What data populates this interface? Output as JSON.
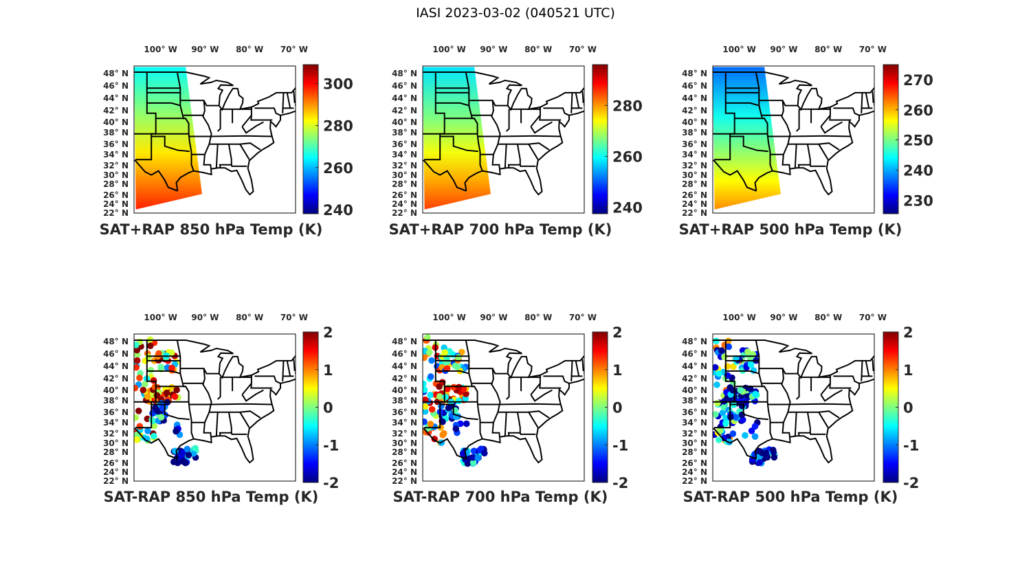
{
  "title": "IASI 2023-03-02 (040521 UTC)",
  "chart_data": [
    {
      "type": "map",
      "title": "SAT+RAP 850 hPa Temp (K)",
      "kind": "field",
      "clim": [
        238,
        309
      ],
      "cbar_ticks": [
        "240",
        "260",
        "280",
        "300"
      ],
      "cbar_tick_values": [
        240,
        260,
        280,
        300
      ],
      "field_north_south": [
        265,
        298
      ]
    },
    {
      "type": "map",
      "title": "SAT+RAP 700 hPa Temp (K)",
      "kind": "field",
      "clim": [
        237.5,
        296
      ],
      "cbar_ticks": [
        "240",
        "260",
        "280"
      ],
      "cbar_tick_values": [
        240,
        260,
        280
      ],
      "field_north_south": [
        258,
        285
      ]
    },
    {
      "type": "map",
      "title": "SAT+RAP 500 hPa Temp (K)",
      "kind": "field",
      "clim": [
        225.5,
        275
      ],
      "cbar_ticks": [
        "230",
        "240",
        "250",
        "260",
        "270"
      ],
      "cbar_tick_values": [
        230,
        240,
        250,
        260,
        270
      ],
      "field_north_south": [
        237,
        262
      ]
    },
    {
      "type": "scatter",
      "title": "SAT-RAP 850 hPa Temp (K)",
      "kind": "diff",
      "clim": [
        -2,
        2
      ],
      "cbar_ticks": [
        "-2",
        "-1",
        "0",
        "1",
        "2"
      ],
      "cbar_tick_values": [
        -2,
        -1,
        0,
        1,
        2
      ]
    },
    {
      "type": "scatter",
      "title": "SAT-RAP 700 hPa Temp (K)",
      "kind": "diff",
      "clim": [
        -2,
        2
      ],
      "cbar_ticks": [
        "-2",
        "-1",
        "0",
        "1",
        "2"
      ],
      "cbar_tick_values": [
        -2,
        -1,
        0,
        1,
        2
      ]
    },
    {
      "type": "scatter",
      "title": "SAT-RAP 500 hPa Temp (K)",
      "kind": "diff",
      "clim": [
        -2,
        2
      ],
      "cbar_ticks": [
        "-2",
        "-1",
        "0",
        "1",
        "2"
      ],
      "cbar_tick_values": [
        -2,
        -1,
        0,
        1,
        2
      ]
    }
  ],
  "lon_ticks": [
    "100° W",
    "90° W",
    "80° W",
    "70° W"
  ],
  "lon_values": [
    -100,
    -90,
    -80,
    -70
  ],
  "lat_ticks": [
    "48° N",
    "46° N",
    "44° N",
    "42° N",
    "40° N",
    "38° N",
    "36° N",
    "34° N",
    "32° N",
    "30° N",
    "28° N",
    "26° N",
    "24° N",
    "22° N"
  ],
  "lat_values": [
    48,
    46,
    44,
    42,
    40,
    38,
    36,
    34,
    32,
    30,
    28,
    26,
    24,
    22
  ]
}
